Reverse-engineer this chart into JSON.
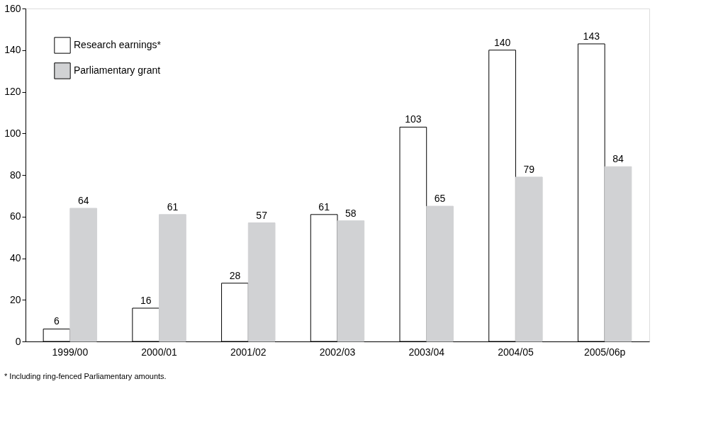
{
  "chart_data": {
    "type": "bar",
    "categories": [
      "1999/00",
      "2000/01",
      "2001/02",
      "2002/03",
      "2003/04",
      "2004/05",
      "2005/06p"
    ],
    "series": [
      {
        "name": "Research earnings*",
        "color": "#ffffff",
        "values": [
          6,
          16,
          28,
          61,
          103,
          140,
          143
        ]
      },
      {
        "name": "Parliamentary grant",
        "color": "#d1d2d4",
        "values": [
          64,
          61,
          57,
          58,
          65,
          79,
          84
        ]
      }
    ],
    "ylim": [
      0,
      160
    ],
    "yticks": [
      0,
      20,
      40,
      60,
      80,
      100,
      120,
      140,
      160
    ],
    "grid": false,
    "legend": "top left",
    "data_labels": true,
    "annotations": [
      "* Including ring-fenced Parliamentary amounts."
    ]
  }
}
